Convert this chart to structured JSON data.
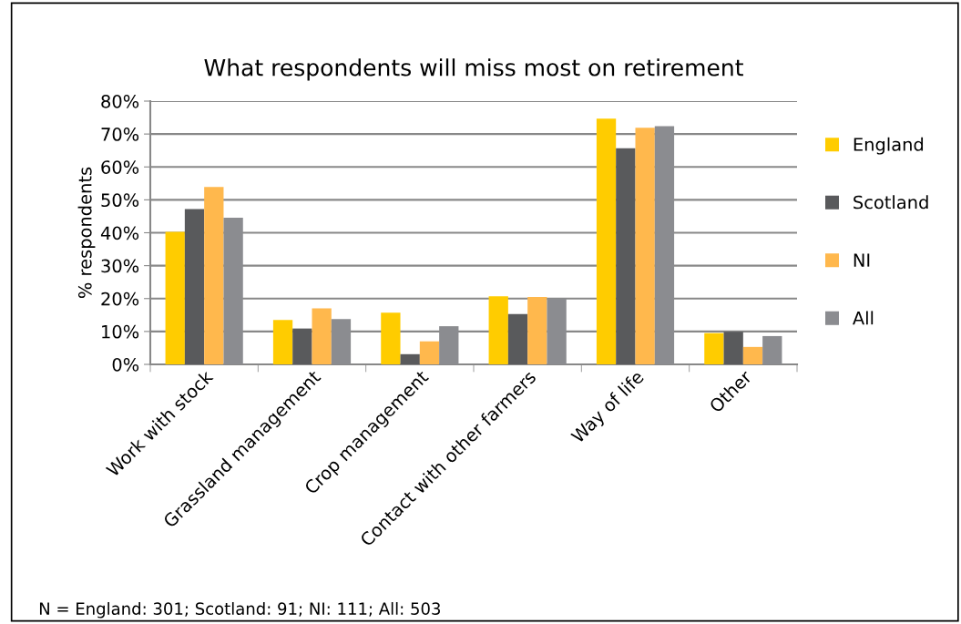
{
  "chart_data": {
    "type": "bar",
    "title": "What respondents will miss most on retirement",
    "ylabel": "% respondents",
    "categories": [
      "Work with stock",
      "Grassland management",
      "Crop management",
      "Contact with other farmers",
      "Way of life",
      "Other"
    ],
    "series": [
      {
        "name": "England",
        "color": "#ffcc00",
        "values": [
          40.3,
          13.5,
          15.7,
          20.7,
          74.7,
          9.5
        ]
      },
      {
        "name": "Scotland",
        "color": "#595a5c",
        "values": [
          47.2,
          10.9,
          3.1,
          15.3,
          65.7,
          9.9
        ]
      },
      {
        "name": "NI",
        "color": "#ffb84d",
        "values": [
          53.9,
          17.0,
          7.0,
          20.5,
          71.9,
          5.3
        ]
      },
      {
        "name": "All",
        "color": "#8b8c90",
        "values": [
          44.6,
          13.8,
          11.6,
          20.0,
          72.4,
          8.6
        ]
      }
    ],
    "ylim": [
      0,
      80
    ],
    "yticks": [
      {
        "value": 0,
        "label": "0%"
      },
      {
        "value": 10,
        "label": "10%"
      },
      {
        "value": 20,
        "label": "20%"
      },
      {
        "value": 30,
        "label": "30%"
      },
      {
        "value": 40,
        "label": "40%"
      },
      {
        "value": 50,
        "label": "50%"
      },
      {
        "value": 60,
        "label": "60%"
      },
      {
        "value": 70,
        "label": "70%"
      },
      {
        "value": 80,
        "label": "80%"
      }
    ],
    "grid": "y",
    "legend": "right",
    "annotations": [
      "N = England: 301; Scotland: 91; NI: 111; All: 503"
    ]
  }
}
